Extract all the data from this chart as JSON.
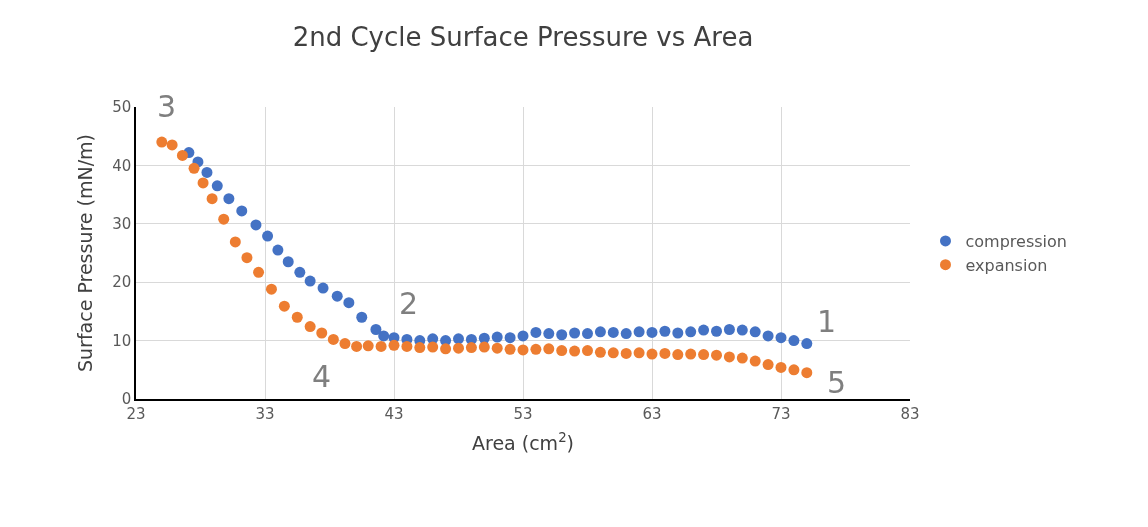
{
  "chart_data": {
    "type": "scatter",
    "title": "2nd Cycle Surface Pressure vs Area",
    "xlabel": "Area (cm$^{2}$)",
    "ylabel": "Surface Pressure (mN/m)",
    "xlim": [
      23,
      83
    ],
    "xticks": [
      23,
      33,
      43,
      53,
      63,
      73,
      83
    ],
    "ylim": [
      0,
      50
    ],
    "yticks": [
      0,
      10,
      20,
      30,
      40,
      50
    ],
    "grid": true,
    "legend": "right",
    "marker": "circle",
    "series": [
      {
        "name": "compression",
        "color": "#4472c4",
        "x": [
          75,
          74,
          73,
          72,
          71,
          70,
          69,
          68,
          67,
          66,
          65,
          64,
          63,
          62,
          61,
          60,
          59,
          58,
          57,
          56,
          55,
          54,
          53,
          52,
          51,
          50,
          49,
          48,
          47,
          46,
          45,
          44,
          43,
          42.2,
          41.6,
          40.5,
          39.5,
          38.6,
          37.5,
          36.5,
          35.7,
          34.8,
          34,
          33.2,
          32.3,
          31.2,
          30.2,
          29.3,
          28.5,
          27.8,
          27.1
        ],
        "values": [
          9.5,
          10.0,
          10.5,
          10.8,
          11.5,
          11.8,
          11.9,
          11.6,
          11.8,
          11.5,
          11.3,
          11.6,
          11.4,
          11.5,
          11.2,
          11.4,
          11.5,
          11.2,
          11.3,
          11.0,
          11.2,
          11.4,
          10.8,
          10.5,
          10.6,
          10.4,
          10.2,
          10.3,
          10.0,
          10.3,
          10.0,
          10.2,
          10.5,
          10.8,
          11.9,
          14,
          16.5,
          17.6,
          19,
          20.2,
          21.7,
          23.5,
          25.5,
          27.9,
          29.8,
          32.2,
          34.3,
          36.5,
          38.8,
          40.6,
          42.2
        ]
      },
      {
        "name": "expansion",
        "color": "#ed7d31",
        "x": [
          25,
          25.8,
          26.6,
          27.5,
          28.2,
          28.9,
          29.8,
          30.7,
          31.6,
          32.5,
          33.5,
          34.5,
          35.5,
          36.5,
          37.4,
          38.3,
          39.2,
          40.1,
          41,
          42,
          43,
          44,
          45,
          46,
          47,
          48,
          49,
          50,
          51,
          52,
          53,
          54,
          55,
          56,
          57,
          58,
          59,
          60,
          61,
          62,
          63,
          64,
          65,
          66,
          67,
          68,
          69,
          70,
          71,
          72,
          73,
          74,
          75
        ],
        "values": [
          44,
          43.5,
          41.7,
          39.5,
          37,
          34.3,
          30.8,
          26.9,
          24.2,
          21.7,
          18.8,
          15.9,
          14,
          12.4,
          11.3,
          10.2,
          9.5,
          9.0,
          9.1,
          9.0,
          9.2,
          9.0,
          8.8,
          8.9,
          8.6,
          8.7,
          8.8,
          8.9,
          8.7,
          8.5,
          8.4,
          8.5,
          8.6,
          8.3,
          8.2,
          8.3,
          8.0,
          7.9,
          7.8,
          7.9,
          7.7,
          7.8,
          7.6,
          7.7,
          7.6,
          7.5,
          7.2,
          7.0,
          6.5,
          5.9,
          5.4,
          5.0,
          4.5
        ]
      }
    ],
    "annotations": [
      {
        "text": "1",
        "x": 75,
        "y": 9.5
      },
      {
        "text": "2",
        "x": 42.2,
        "y": 10.8
      },
      {
        "text": "3",
        "x": 25,
        "y": 44
      },
      {
        "text": "4",
        "x": 40.1,
        "y": 9.0
      },
      {
        "text": "5",
        "x": 75,
        "y": 4.5
      }
    ]
  }
}
